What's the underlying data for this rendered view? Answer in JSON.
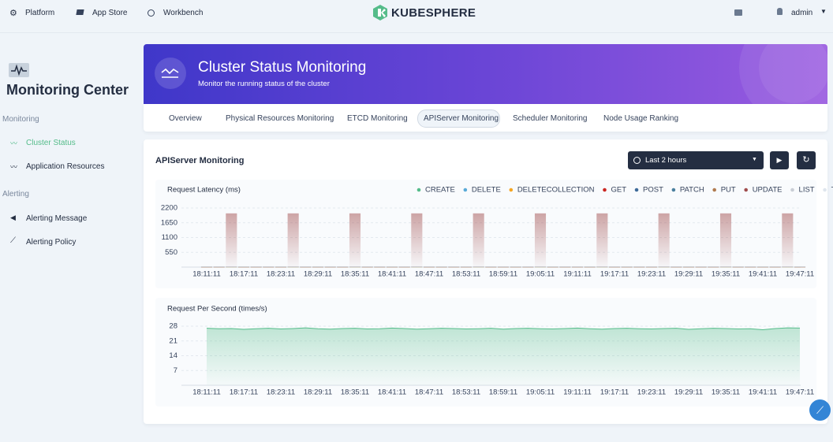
{
  "nav": {
    "items": [
      "Platform",
      "App Store",
      "Workbench"
    ],
    "logo": "KUBESPHERE",
    "user": "admin"
  },
  "sidebar": {
    "title": "Monitoring Center",
    "groups": [
      {
        "title": "Monitoring",
        "items": [
          "Cluster Status",
          "Application Resources"
        ]
      },
      {
        "title": "Alerting",
        "items": [
          "Alerting Message",
          "Alerting Policy"
        ]
      }
    ]
  },
  "banner": {
    "title": "Cluster Status Monitoring",
    "subtitle": "Monitor the running status of the cluster"
  },
  "tabs": [
    "Overview",
    "Physical Resources Monitoring",
    "ETCD Monitoring",
    "APIServer Monitoring",
    "Scheduler Monitoring",
    "Node Usage Ranking"
  ],
  "panel": {
    "title": "APIServer Monitoring",
    "time_range": "Last 2 hours"
  },
  "chart_data": [
    {
      "type": "bar",
      "title": "Request Latency (ms)",
      "categories": [
        "18:11:11",
        null,
        null,
        "18:17:11",
        null,
        null,
        "18:23:11",
        null,
        null,
        "18:29:11",
        null,
        null,
        "18:35:11",
        null,
        null,
        "18:41:11",
        null,
        null,
        "18:47:11",
        null,
        null,
        "18:53:11",
        null,
        null,
        "18:59:11",
        null,
        null,
        "19:05:11",
        null,
        null,
        "19:11:11",
        null,
        null,
        "19:17:11",
        null,
        null,
        "19:23:11",
        null,
        null,
        "19:29:11",
        null,
        null,
        "19:35:11",
        null,
        null,
        "19:41:11",
        null,
        null,
        "19:47:11"
      ],
      "series": [
        {
          "name": "CREATE",
          "color": "#55bc8a",
          "values": [
            8,
            8,
            8,
            8,
            8,
            8,
            8,
            8,
            8,
            8,
            8,
            8,
            8,
            8,
            8,
            8,
            8,
            8,
            8,
            8,
            8,
            8,
            8,
            8,
            8,
            8,
            8,
            8,
            8,
            8,
            8,
            8,
            8,
            8,
            8,
            8,
            8,
            8,
            8,
            8,
            8,
            8,
            8,
            8,
            8,
            8,
            8,
            8,
            8
          ]
        },
        {
          "name": "DELETE",
          "color": "#5aabd8",
          "values": [
            6,
            6,
            6,
            6,
            6,
            6,
            6,
            6,
            6,
            6,
            6,
            6,
            6,
            6,
            6,
            6,
            6,
            6,
            6,
            6,
            6,
            6,
            6,
            6,
            6,
            6,
            6,
            6,
            6,
            6,
            6,
            6,
            6,
            6,
            6,
            6,
            6,
            6,
            6,
            6,
            6,
            6,
            6,
            6,
            6,
            6,
            6,
            6,
            6
          ]
        },
        {
          "name": "DELETECOLLECTION",
          "color": "#f5a623",
          "values": [
            0,
            0,
            0,
            0,
            0,
            0,
            0,
            0,
            0,
            0,
            0,
            0,
            0,
            0,
            0,
            0,
            0,
            0,
            0,
            0,
            0,
            0,
            0,
            0,
            0,
            0,
            0,
            0,
            0,
            0,
            0,
            0,
            0,
            0,
            0,
            0,
            0,
            0,
            0,
            0,
            0,
            0,
            0,
            0,
            0,
            0,
            0,
            0,
            0
          ]
        },
        {
          "name": "GET",
          "color": "#ca2621",
          "values": [
            12,
            12,
            12,
            12,
            12,
            12,
            12,
            12,
            12,
            12,
            12,
            12,
            12,
            12,
            12,
            12,
            12,
            12,
            12,
            12,
            12,
            12,
            12,
            12,
            12,
            12,
            12,
            12,
            12,
            12,
            12,
            12,
            12,
            12,
            12,
            12,
            12,
            12,
            12,
            12,
            12,
            12,
            12,
            12,
            12,
            12,
            12,
            12,
            12
          ]
        },
        {
          "name": "POST",
          "color": "#3d6a99",
          "values": [
            9,
            9,
            9,
            9,
            9,
            9,
            9,
            9,
            9,
            9,
            9,
            9,
            9,
            9,
            9,
            9,
            9,
            9,
            9,
            9,
            9,
            9,
            9,
            9,
            9,
            9,
            9,
            9,
            9,
            9,
            9,
            9,
            9,
            9,
            9,
            9,
            9,
            9,
            9,
            9,
            9,
            9,
            9,
            9,
            9,
            9,
            9,
            9,
            9
          ]
        },
        {
          "name": "PATCH",
          "color": "#4a7f9e",
          "values": [
            7,
            7,
            7,
            7,
            7,
            7,
            7,
            7,
            7,
            7,
            7,
            7,
            7,
            7,
            7,
            7,
            7,
            7,
            7,
            7,
            7,
            7,
            7,
            7,
            7,
            7,
            7,
            7,
            7,
            7,
            7,
            7,
            7,
            7,
            7,
            7,
            7,
            7,
            7,
            7,
            7,
            7,
            7,
            7,
            7,
            7,
            7,
            7,
            7
          ]
        },
        {
          "name": "PUT",
          "color": "#b07a4f",
          "values": [
            10,
            10,
            10,
            10,
            10,
            10,
            10,
            10,
            10,
            10,
            10,
            10,
            10,
            10,
            10,
            10,
            10,
            10,
            10,
            10,
            10,
            10,
            10,
            10,
            10,
            10,
            10,
            10,
            10,
            10,
            10,
            10,
            10,
            10,
            10,
            10,
            10,
            10,
            10,
            10,
            10,
            10,
            10,
            10,
            10,
            10,
            10,
            10,
            10
          ]
        },
        {
          "name": "UPDATE",
          "color": "#a04d4d",
          "values": [
            0,
            0,
            2000,
            0,
            0,
            0,
            0,
            2000,
            0,
            0,
            0,
            0,
            2000,
            0,
            0,
            0,
            0,
            2000,
            0,
            0,
            0,
            0,
            2000,
            0,
            0,
            0,
            0,
            2000,
            0,
            0,
            0,
            0,
            2000,
            0,
            0,
            0,
            0,
            2000,
            0,
            0,
            0,
            0,
            2000,
            0,
            0,
            0,
            0,
            2000,
            0
          ]
        },
        {
          "name": "LIST",
          "color": "#c9ced6",
          "values": [
            15,
            15,
            15,
            15,
            15,
            15,
            15,
            15,
            15,
            15,
            15,
            15,
            15,
            15,
            15,
            15,
            15,
            15,
            15,
            15,
            15,
            15,
            15,
            15,
            15,
            15,
            15,
            15,
            15,
            15,
            15,
            15,
            15,
            15,
            15,
            15,
            15,
            15,
            15,
            15,
            15,
            15,
            15,
            15,
            15,
            15,
            15,
            15,
            15
          ]
        },
        {
          "name": "Total",
          "color": "#dfe6ee",
          "values": [
            30,
            32,
            31,
            30,
            33,
            31,
            30,
            32,
            31,
            30,
            34,
            31,
            30,
            32,
            31,
            30,
            33,
            32,
            31,
            30,
            31,
            32,
            30,
            31,
            33,
            30,
            31,
            32,
            30,
            31,
            32,
            30,
            31,
            33,
            30,
            31,
            32,
            30,
            31,
            30,
            32,
            31,
            30,
            33,
            31,
            30,
            32,
            31,
            30
          ]
        }
      ],
      "ylim": [
        0,
        2200
      ],
      "yticks": [
        550,
        1100,
        1650,
        2200
      ],
      "grid": true
    },
    {
      "type": "area",
      "title": "Request Per Second (times/s)",
      "categories": [
        "18:11:11",
        null,
        null,
        "18:17:11",
        null,
        null,
        "18:23:11",
        null,
        null,
        "18:29:11",
        null,
        null,
        "18:35:11",
        null,
        null,
        "18:41:11",
        null,
        null,
        "18:47:11",
        null,
        null,
        "18:53:11",
        null,
        null,
        "18:59:11",
        null,
        null,
        "19:05:11",
        null,
        null,
        "19:11:11",
        null,
        null,
        "19:17:11",
        null,
        null,
        "19:23:11",
        null,
        null,
        "19:29:11",
        null,
        null,
        "19:35:11",
        null,
        null,
        "19:41:11",
        null,
        null,
        "19:47:11"
      ],
      "series": [
        {
          "color": "#55bc8a",
          "values": [
            27,
            26.8,
            26.9,
            26.5,
            26.8,
            27,
            26.7,
            26.9,
            27.2,
            26.8,
            26.6,
            26.9,
            27,
            26.7,
            26.8,
            27.1,
            26.9,
            26.6,
            26.8,
            27,
            26.9,
            26.7,
            26.8,
            27,
            26.6,
            26.9,
            27,
            26.8,
            26.7,
            26.9,
            27.1,
            26.8,
            26.6,
            26.9,
            27,
            26.8,
            26.7,
            26.9,
            27,
            26.5,
            26.8,
            27,
            26.9,
            26.7,
            26.8,
            26.3,
            26.9,
            27.2,
            27.1
          ]
        }
      ],
      "ylim": [
        0,
        28
      ],
      "yticks": [
        7,
        14,
        21,
        28
      ],
      "grid": true
    }
  ]
}
